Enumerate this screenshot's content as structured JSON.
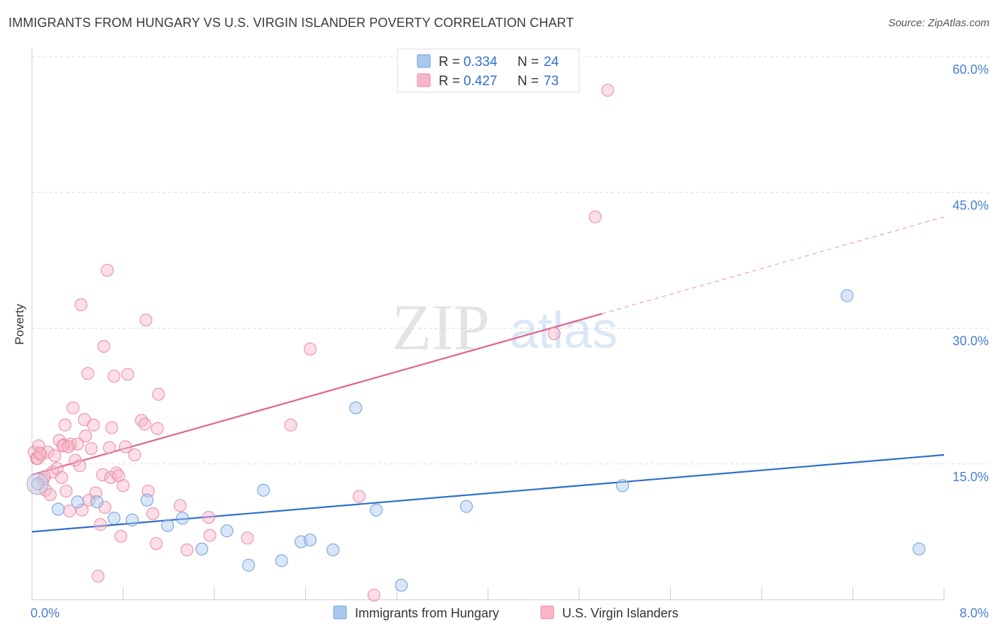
{
  "header": {
    "title": "IMMIGRANTS FROM HUNGARY VS U.S. VIRGIN ISLANDER POVERTY CORRELATION CHART",
    "source": "Source: ZipAtlas.com"
  },
  "watermark": {
    "zip": "ZIP",
    "atlas": "atlas"
  },
  "legend_top": {
    "rows": [
      {
        "r_label": "R =",
        "r_value": "0.334",
        "n_label": "N =",
        "n_value": "24",
        "color": "#a9c8f0"
      },
      {
        "r_label": "R =",
        "r_value": "0.427",
        "n_label": "N =",
        "n_value": "73",
        "color": "#f7b6c8"
      }
    ]
  },
  "chart_data": {
    "type": "scatter",
    "title": "IMMIGRANTS FROM HUNGARY VS U.S. VIRGIN ISLANDER POVERTY CORRELATION CHART",
    "ylabel": "Poverty",
    "xlim": [
      0,
      8
    ],
    "ylim": [
      0,
      60
    ],
    "x_tick_labels": [
      "0.0%",
      "8.0%"
    ],
    "y_tick_values": [
      15,
      30,
      45,
      60
    ],
    "y_tick_labels": [
      "15.0%",
      "30.0%",
      "45.0%",
      "60.0%"
    ],
    "series": [
      {
        "name": "Immigrants from Hungary",
        "color": "#a9c8f0",
        "stroke": "#6f9fd8",
        "trend": {
          "x0": 0,
          "y0": 7.5,
          "x1": 8,
          "y1": 16.0,
          "color": "#2f6fcc"
        },
        "points": [
          [
            0.05,
            12.8
          ],
          [
            0.23,
            10.0
          ],
          [
            0.4,
            10.8
          ],
          [
            0.57,
            10.8
          ],
          [
            0.72,
            9.0
          ],
          [
            0.88,
            8.8
          ],
          [
            1.01,
            11.0
          ],
          [
            1.19,
            8.2
          ],
          [
            1.32,
            9.0
          ],
          [
            1.49,
            5.6
          ],
          [
            1.71,
            7.6
          ],
          [
            1.9,
            3.8
          ],
          [
            2.03,
            12.1
          ],
          [
            2.19,
            4.3
          ],
          [
            2.36,
            6.4
          ],
          [
            2.44,
            6.6
          ],
          [
            2.64,
            5.5
          ],
          [
            2.84,
            21.2
          ],
          [
            3.02,
            9.9
          ],
          [
            3.24,
            1.6
          ],
          [
            3.81,
            10.3
          ],
          [
            5.18,
            12.6
          ],
          [
            7.15,
            33.6
          ],
          [
            7.78,
            5.6
          ]
        ]
      },
      {
        "name": "U.S. Virgin Islanders",
        "color": "#f7b6c8",
        "stroke": "#e88aa6",
        "trend": {
          "x0": 0,
          "y0": 13.8,
          "x1": 5.0,
          "y1": 31.6,
          "dash_x1": 8.0,
          "dash_y1": 42.3,
          "color": "#e0648c"
        },
        "points": [
          [
            0.02,
            16.3
          ],
          [
            0.04,
            15.6
          ],
          [
            0.06,
            17.0
          ],
          [
            0.08,
            16.0
          ],
          [
            0.1,
            13.3
          ],
          [
            0.12,
            12.1
          ],
          [
            0.14,
            16.3
          ],
          [
            0.16,
            11.6
          ],
          [
            0.18,
            14.1
          ],
          [
            0.2,
            15.9
          ],
          [
            0.22,
            14.5
          ],
          [
            0.24,
            17.6
          ],
          [
            0.26,
            13.5
          ],
          [
            0.28,
            17.1
          ],
          [
            0.29,
            19.3
          ],
          [
            0.3,
            12.0
          ],
          [
            0.33,
            9.8
          ],
          [
            0.34,
            17.2
          ],
          [
            0.36,
            21.2
          ],
          [
            0.38,
            15.4
          ],
          [
            0.4,
            17.2
          ],
          [
            0.42,
            14.8
          ],
          [
            0.43,
            32.6
          ],
          [
            0.44,
            9.9
          ],
          [
            0.46,
            19.9
          ],
          [
            0.47,
            18.1
          ],
          [
            0.49,
            25.0
          ],
          [
            0.5,
            11.0
          ],
          [
            0.52,
            16.7
          ],
          [
            0.54,
            19.3
          ],
          [
            0.56,
            11.8
          ],
          [
            0.58,
            2.6
          ],
          [
            0.6,
            8.3
          ],
          [
            0.62,
            13.8
          ],
          [
            0.63,
            28.0
          ],
          [
            0.64,
            10.2
          ],
          [
            0.66,
            36.4
          ],
          [
            0.68,
            16.8
          ],
          [
            0.69,
            13.5
          ],
          [
            0.7,
            19.0
          ],
          [
            0.72,
            24.7
          ],
          [
            0.74,
            14.0
          ],
          [
            0.76,
            13.7
          ],
          [
            0.78,
            7.0
          ],
          [
            0.8,
            12.6
          ],
          [
            0.82,
            16.9
          ],
          [
            0.84,
            24.9
          ],
          [
            0.96,
            19.8
          ],
          [
            0.99,
            19.4
          ],
          [
            1.0,
            30.9
          ],
          [
            1.02,
            12.0
          ],
          [
            1.06,
            9.5
          ],
          [
            1.09,
            6.2
          ],
          [
            1.1,
            18.9
          ],
          [
            1.11,
            22.7
          ],
          [
            1.3,
            10.4
          ],
          [
            1.36,
            5.5
          ],
          [
            1.55,
            9.1
          ],
          [
            1.56,
            7.1
          ],
          [
            1.89,
            6.8
          ],
          [
            2.27,
            19.3
          ],
          [
            2.44,
            27.7
          ],
          [
            2.87,
            11.4
          ],
          [
            3.0,
            0.5
          ],
          [
            4.58,
            29.4
          ],
          [
            4.94,
            42.3
          ],
          [
            5.05,
            56.3
          ],
          [
            0.05,
            15.6
          ],
          [
            0.27,
            17.0
          ],
          [
            0.32,
            16.9
          ],
          [
            0.11,
            13.6
          ],
          [
            0.07,
            16.2
          ],
          [
            0.9,
            16.0
          ]
        ]
      }
    ]
  },
  "legend_bottom": {
    "items": [
      {
        "label": "Immigrants from Hungary",
        "color": "#a9c8f0"
      },
      {
        "label": "U.S. Virgin Islanders",
        "color": "#f7b6c8"
      }
    ]
  }
}
